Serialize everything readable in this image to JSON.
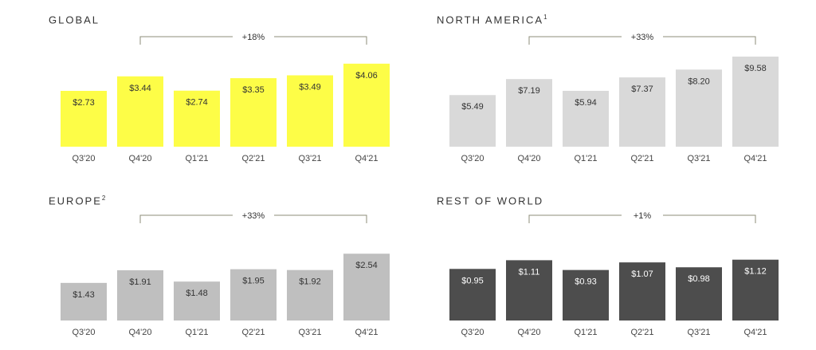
{
  "chart_data": [
    {
      "type": "bar",
      "title": "GLOBAL",
      "footnote": "",
      "categories": [
        "Q3'20",
        "Q4'20",
        "Q1'21",
        "Q2'21",
        "Q3'21",
        "Q4'21"
      ],
      "values": [
        2.73,
        3.44,
        2.74,
        3.35,
        3.49,
        4.06
      ],
      "value_labels": [
        "$2.73",
        "$3.44",
        "$2.74",
        "$3.35",
        "$3.49",
        "$4.06"
      ],
      "growth": "+18%",
      "color": "#fdfd47",
      "label_color": "#333333",
      "xlabel": "",
      "ylabel": "",
      "ylim": [
        0,
        4.6
      ],
      "grid": false
    },
    {
      "type": "bar",
      "title": "NORTH AMERICA",
      "footnote": "1",
      "categories": [
        "Q3'20",
        "Q4'20",
        "Q1'21",
        "Q2'21",
        "Q3'21",
        "Q4'21"
      ],
      "values": [
        5.49,
        7.19,
        5.94,
        7.37,
        8.2,
        9.58
      ],
      "value_labels": [
        "$5.49",
        "$7.19",
        "$5.94",
        "$7.37",
        "$8.20",
        "$9.58"
      ],
      "growth": "+33%",
      "color": "#d9d9d9",
      "label_color": "#333333",
      "xlabel": "",
      "ylabel": "",
      "ylim": [
        0,
        10.85
      ],
      "grid": false
    },
    {
      "type": "bar",
      "title": "EUROPE",
      "footnote": "2",
      "categories": [
        "Q3'20",
        "Q4'20",
        "Q1'21",
        "Q2'21",
        "Q3'21",
        "Q4'21"
      ],
      "values": [
        1.43,
        1.91,
        1.48,
        1.95,
        1.92,
        2.54
      ],
      "value_labels": [
        "$1.43",
        "$1.91",
        "$1.48",
        "$1.95",
        "$1.92",
        "$2.54"
      ],
      "growth": "+33%",
      "color": "#bfbfbf",
      "label_color": "#333333",
      "xlabel": "",
      "ylabel": "",
      "ylim": [
        0,
        2.85
      ],
      "grid": false
    },
    {
      "type": "bar",
      "title": "REST OF WORLD",
      "footnote": "",
      "categories": [
        "Q3'20",
        "Q4'20",
        "Q1'21",
        "Q2'21",
        "Q3'21",
        "Q4'21"
      ],
      "values": [
        0.95,
        1.11,
        0.93,
        1.07,
        0.98,
        1.12
      ],
      "value_labels": [
        "$0.95",
        "$1.11",
        "$0.93",
        "$1.07",
        "$0.98",
        "$1.12"
      ],
      "growth": "+1%",
      "color": "#4d4d4d",
      "label_color": "#ffffff",
      "xlabel": "",
      "ylabel": "",
      "ylim": [
        0,
        1.38
      ],
      "grid": false
    }
  ],
  "colors": {
    "bracket": "#8c8c7a",
    "tick_text": "#444444",
    "title_text": "#333333"
  }
}
